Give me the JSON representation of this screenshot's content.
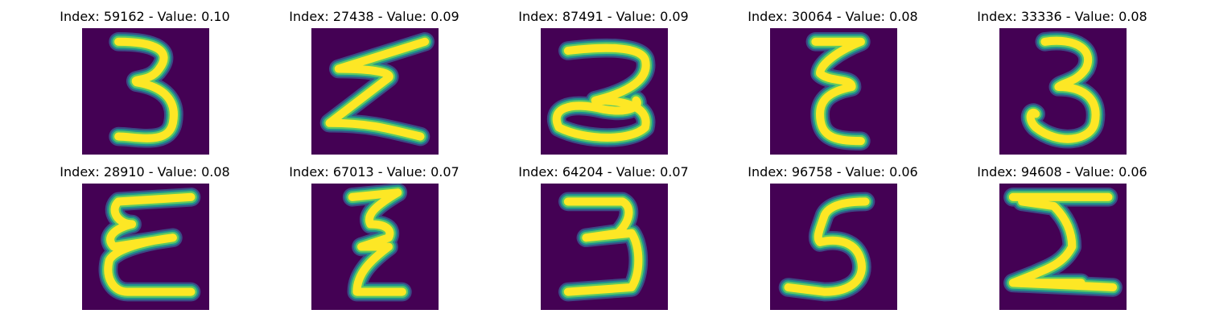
{
  "colors": {
    "background": "#440154",
    "stroke_core": "#fde725",
    "stroke_mid": "#5ec962",
    "stroke_edge": "#21918c",
    "stroke_halo": "#3b528b"
  },
  "panels": [
    {
      "title": "Index: 59162 - Value: 0.10",
      "glyph": "3"
    },
    {
      "title": "Index: 27438 - Value: 0.09",
      "glyph": "Σ"
    },
    {
      "title": "Index: 87491 - Value: 0.09",
      "glyph": "3"
    },
    {
      "title": "Index: 30064 - Value: 0.08",
      "glyph": "ε"
    },
    {
      "title": "Index: 33336 - Value: 0.08",
      "glyph": "3"
    },
    {
      "title": "Index: 28910 - Value: 0.08",
      "glyph": "ε"
    },
    {
      "title": "Index: 67013 - Value: 0.07",
      "glyph": "ε"
    },
    {
      "title": "Index: 64204 - Value: 0.07",
      "glyph": "3"
    },
    {
      "title": "Index: 96758 - Value: 0.06",
      "glyph": "5"
    },
    {
      "title": "Index: 94608 - Value: 0.06",
      "glyph": "Σ"
    }
  ]
}
